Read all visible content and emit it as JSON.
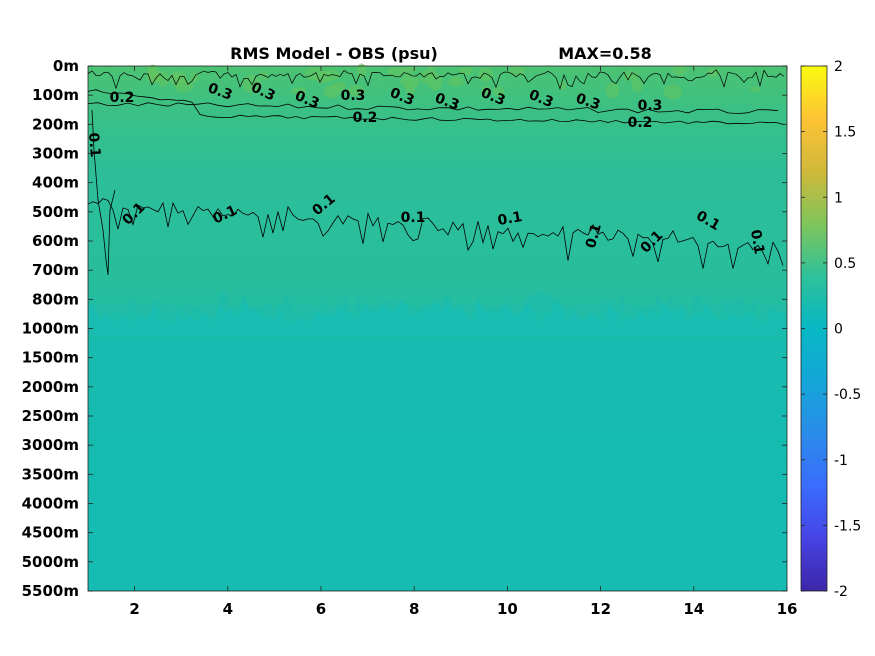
{
  "chart_data": {
    "type": "heatmap",
    "title": "RMS Model - OBS (psu)",
    "annotation": "MAX=0.58",
    "xlabel": "",
    "ylabel": "",
    "xlim": [
      1,
      16
    ],
    "x_ticks": [
      2,
      4,
      6,
      8,
      10,
      12,
      14,
      16
    ],
    "y_ticks": [
      "0m",
      "100m",
      "200m",
      "300m",
      "400m",
      "500m",
      "600m",
      "700m",
      "800m",
      "1000m",
      "1500m",
      "2000m",
      "2500m",
      "3000m",
      "3500m",
      "4000m",
      "4500m",
      "5000m",
      "5500m"
    ],
    "colorbar": {
      "range": [
        -2,
        2
      ],
      "ticks": [
        "2",
        "1.5",
        "1",
        "0.5",
        "0",
        "-0.5",
        "-1",
        "-1.5",
        "-2"
      ],
      "colormap": "parula"
    },
    "contour_levels": [
      0.1,
      0.2,
      0.3
    ],
    "contour_labels": [
      "0.2",
      "0.3",
      "0.3",
      "0.3",
      "0.3",
      "0.3",
      "0.3",
      "0.3",
      "0.3",
      "0.3",
      "0.3",
      "0.2",
      "0.2",
      "0.1",
      "0.1",
      "0.1",
      "0.1",
      "0.1",
      "0.1",
      "0.1",
      "0.1",
      "0.1",
      "0.1"
    ],
    "field": {
      "x": [
        1,
        16
      ],
      "depth_rows": [
        "0m",
        "100m",
        "200m",
        "300m",
        "400m",
        "500m",
        "600m",
        "700m",
        "800m",
        "1000m",
        "1500m",
        "2000m",
        "2500m",
        "3000m",
        "3500m",
        "4000m",
        "4500m",
        "5000m",
        "5500m"
      ],
      "values": [
        0.45,
        0.3,
        0.2,
        0.15,
        0.13,
        0.11,
        0.1,
        0.09,
        0.07,
        0.03,
        0.02,
        0.02,
        0.02,
        0.02,
        0.02,
        0.02,
        0.02,
        0.02,
        0.02
      ]
    },
    "colors": {
      "deep": "#16bbb1",
      "surface_high": "#49c173",
      "mid": "#2fbf95",
      "contour": "#000000"
    }
  }
}
